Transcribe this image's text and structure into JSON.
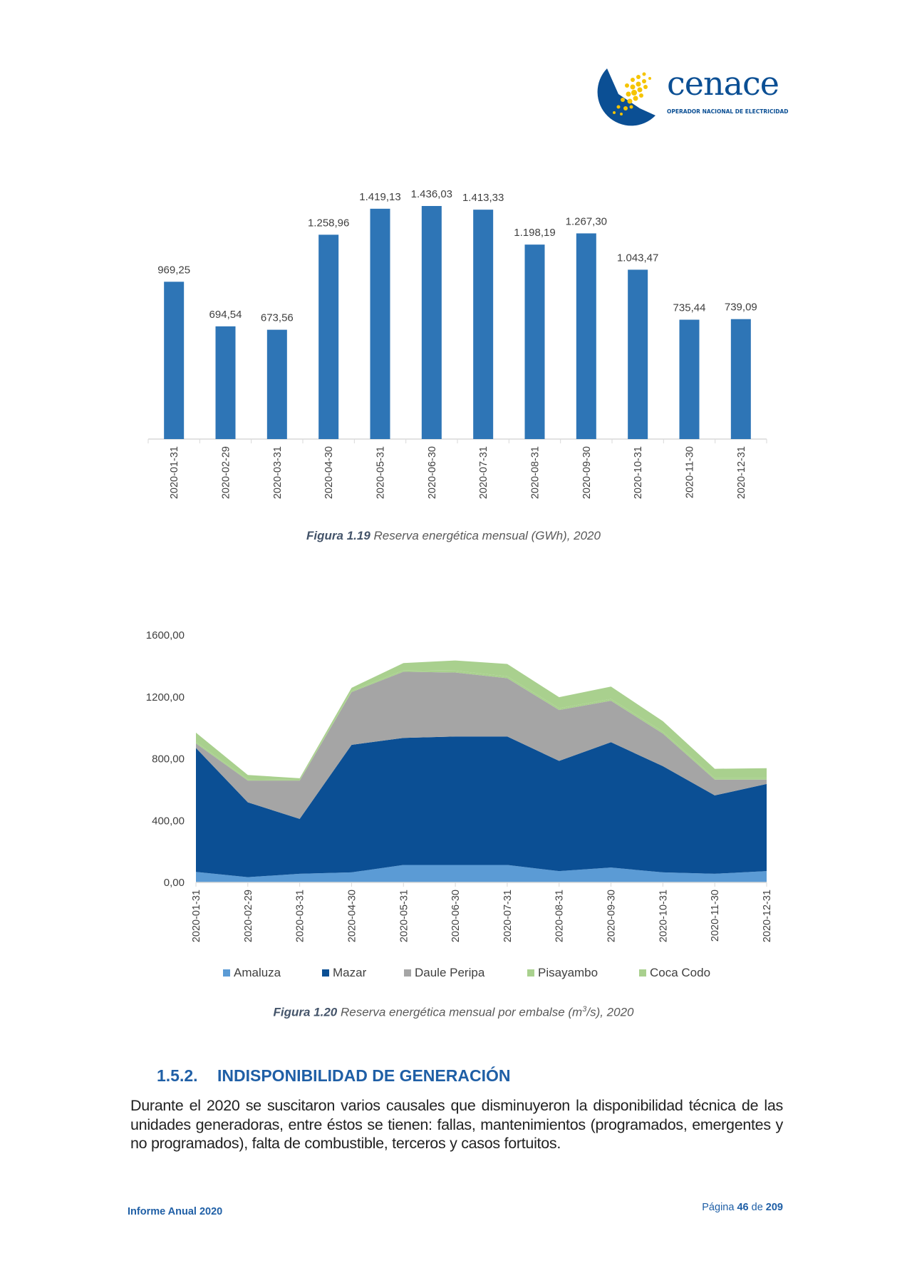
{
  "header": {
    "logo": {
      "name": "cenace",
      "tagline": "OPERADOR NACIONAL DE ELECTRICIDAD",
      "colors": {
        "blue": "#0b4f94",
        "yellow": "#f5c400"
      }
    }
  },
  "figure_1_19": {
    "caption_label": "Figura 1.19",
    "caption_text": "Reserva energética mensual (GWh),  2020"
  },
  "figure_1_20": {
    "caption_label": "Figura 1.20",
    "caption_text_a": "Reserva energética mensual por embalse  (m",
    "caption_sup": "3",
    "caption_text_b": "/s), 2020"
  },
  "chart_data": [
    {
      "type": "bar",
      "categories": [
        "2020-01-31",
        "2020-02-29",
        "2020-03-31",
        "2020-04-30",
        "2020-05-31",
        "2020-06-30",
        "2020-07-31",
        "2020-08-31",
        "2020-09-30",
        "2020-10-31",
        "2020-11-30",
        "2020-12-31"
      ],
      "values": [
        969.25,
        694.54,
        673.56,
        1258.96,
        1419.13,
        1436.03,
        1413.33,
        1198.19,
        1267.3,
        1043.47,
        735.44,
        739.09
      ],
      "data_labels": [
        "969,25",
        "694,54",
        "673,56",
        "1.258,96",
        "1.419,13",
        "1.436,03",
        "1.413,33",
        "1.198,19",
        "1.267,30",
        "1.043,47",
        "735,44",
        "739,09"
      ],
      "color": "#2e75b6",
      "ylim": [
        0,
        1436.03
      ],
      "grid": false
    },
    {
      "type": "area",
      "stacked": true,
      "categories": [
        "2020-01-31",
        "2020-02-29",
        "2020-03-31",
        "2020-04-30",
        "2020-05-31",
        "2020-06-30",
        "2020-07-31",
        "2020-08-31",
        "2020-09-30",
        "2020-10-31",
        "2020-11-30",
        "2020-12-31"
      ],
      "series": [
        {
          "name": "Amaluza",
          "color": "#5b9bd5",
          "values": [
            68,
            34,
            56,
            65,
            113,
            113,
            113,
            73,
            96,
            65,
            56,
            73
          ]
        },
        {
          "name": "Mazar",
          "color": "#0b4f94",
          "values": [
            802,
            484,
            355,
            825,
            822,
            831,
            831,
            713,
            811,
            687,
            507,
            564
          ]
        },
        {
          "name": "Daule Peripa",
          "color": "#a5a5a5",
          "values": [
            29,
            141,
            248,
            341,
            428,
            414,
            377,
            329,
            268,
            211,
            102,
            28
          ]
        },
        {
          "name": "Pisayambo",
          "color": "#a9d18e",
          "values": [
            10,
            8,
            5,
            8,
            10,
            12,
            12,
            12,
            12,
            12,
            10,
            10
          ]
        },
        {
          "name": "Coca Codo",
          "color": "#a9d08e",
          "values": [
            60,
            28,
            10,
            20,
            46,
            66,
            80,
            71,
            80,
            68,
            60,
            64
          ]
        }
      ],
      "y_ticks": [
        "0,00",
        "400,00",
        "800,00",
        "1200,00",
        "1600,00"
      ],
      "ylim": [
        0,
        1600
      ],
      "grid": false,
      "legend": "bottom"
    }
  ],
  "section": {
    "number": "1.5.2.",
    "title": "INDISPONIBILIDAD DE GENERACIÓN",
    "paragraph": "Durante el 2020 se suscitaron varios causales que disminuyeron la disponibilidad técnica de las unidades generadoras, entre éstos se tienen: fallas, mantenimientos (programados, emergentes y no programados), falta de combustible, terceros y casos fortuitos."
  },
  "footer": {
    "report": "Informe Anual 2020",
    "page_label": "Página",
    "page": "46",
    "of_label": "de",
    "total": "209"
  }
}
